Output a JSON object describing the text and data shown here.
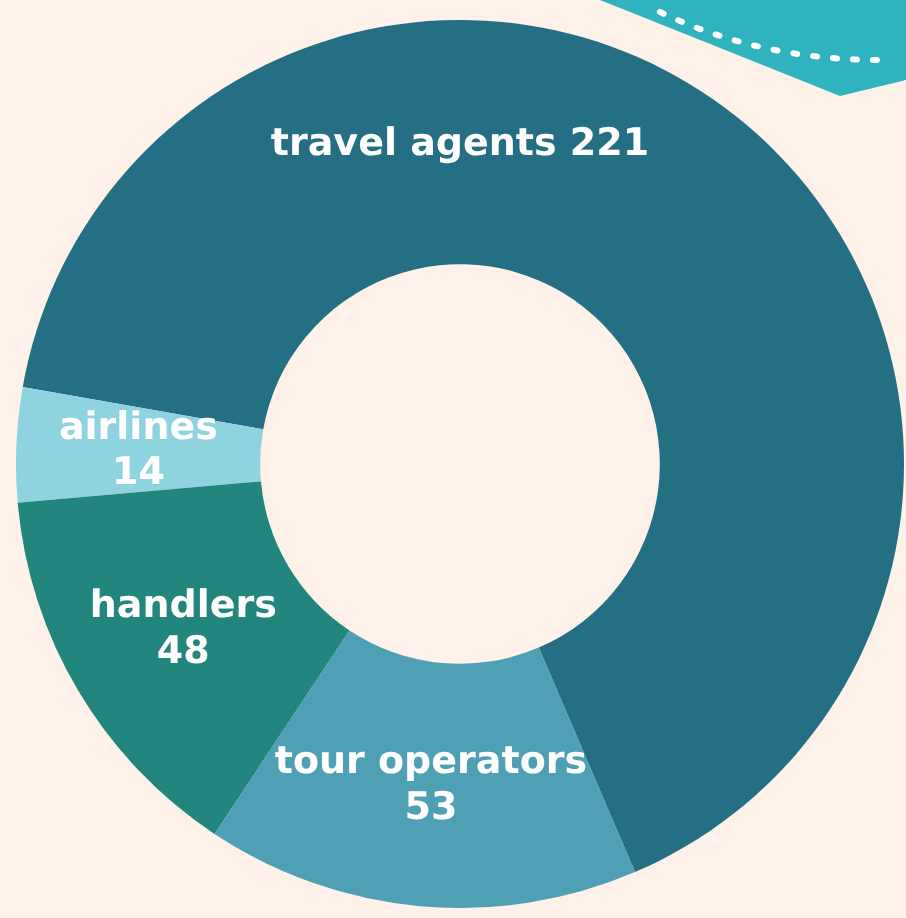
{
  "chart_data": {
    "type": "donut",
    "categories": [
      "travel agents",
      "airlines",
      "handlers",
      "tour operators"
    ],
    "values": [
      221,
      14,
      48,
      53
    ],
    "colors": [
      "#246f84",
      "#8fd3e0",
      "#22857e",
      "#4fa0b5"
    ],
    "data_labels": true
  }
}
